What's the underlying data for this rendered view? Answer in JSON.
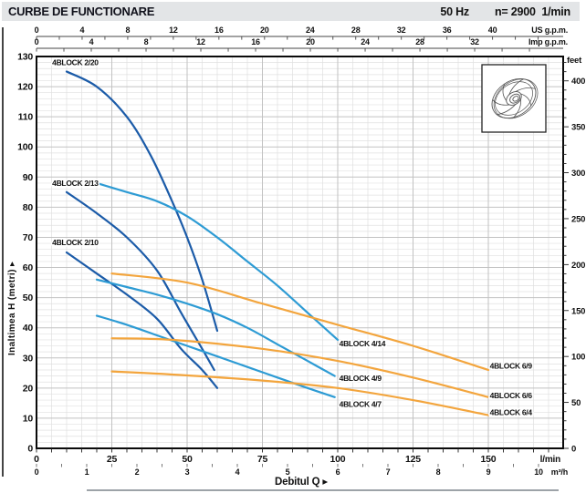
{
  "header": {
    "title": "CURBE DE FUNCTIONARE",
    "frequency": "50 Hz",
    "speed": "n= 2900  1/min"
  },
  "colors": {
    "dark_blue": "#1b5ba8",
    "light_blue": "#2d9bd4",
    "orange": "#f3a53d",
    "grid_minor": "#e0e0e0",
    "grid_major": "#c2c2c2",
    "frame": "#0a0a0a",
    "text": "#111111",
    "footer_rule": "#8f969c"
  },
  "chart_data": {
    "type": "line",
    "title": "CURBE DE FUNCTIONARE",
    "frequency": "50 Hz",
    "speed_rpm": "n= 2900 1/min",
    "xlabel": "Debitul Q",
    "ylabel": "Inaltimea H (metri)",
    "x_range_lmin": [
      0,
      175
    ],
    "y_range_m": [
      0,
      130
    ],
    "grid": true,
    "x_axes": [
      {
        "unit": "US g.p.m.",
        "position": "top-outer",
        "to_lmin": 3.785,
        "ticks": [
          0,
          4,
          8,
          12,
          16,
          20,
          24,
          28,
          32,
          36,
          40
        ],
        "minor_step": 2,
        "minor_max": 44
      },
      {
        "unit": "Imp g.p.m.",
        "position": "top-inner",
        "to_lmin": 4.546,
        "ticks": [
          0,
          4,
          8,
          12,
          16,
          20,
          24,
          28,
          32
        ],
        "minor_step": 2,
        "minor_max": 36
      },
      {
        "unit": "l/min",
        "position": "bottom-inner",
        "to_lmin": 1,
        "ticks": [
          0,
          25,
          50,
          75,
          100,
          125,
          150
        ],
        "minor_step": 5,
        "minor_max": 170
      },
      {
        "unit": "m³/h",
        "position": "bottom-outer",
        "to_lmin": 16.6667,
        "ticks": [
          0,
          1,
          2,
          3,
          4,
          5,
          6,
          7,
          8,
          9,
          10
        ],
        "minor_step": 0.5,
        "minor_max": 10
      }
    ],
    "y_axes": [
      {
        "unit": "metri",
        "position": "left",
        "to_m": 1,
        "ticks": [
          0,
          10,
          20,
          30,
          40,
          50,
          60,
          70,
          80,
          90,
          100,
          110,
          120,
          130
        ],
        "minor_step": 2,
        "minor_max": 130
      },
      {
        "unit": "feet",
        "position": "right",
        "to_m": 0.3048,
        "ticks": [
          0,
          50,
          100,
          150,
          200,
          250,
          300,
          350,
          400
        ],
        "minor_step": 10,
        "minor_max": 420
      }
    ],
    "series": [
      {
        "name": "4BLOCK 2/20",
        "color": "dark_blue",
        "label_at": [
          5.2,
          128
        ],
        "points": [
          [
            10,
            125
          ],
          [
            20,
            120
          ],
          [
            30,
            110
          ],
          [
            38,
            97
          ],
          [
            45,
            82
          ],
          [
            50,
            70
          ],
          [
            55,
            56
          ],
          [
            60,
            39
          ]
        ]
      },
      {
        "name": "4BLOCK 2/13",
        "color": "dark_blue",
        "label_at": [
          5.2,
          88
        ],
        "points": [
          [
            10,
            85
          ],
          [
            20,
            78
          ],
          [
            30,
            70
          ],
          [
            40,
            59
          ],
          [
            48,
            45
          ],
          [
            55,
            33
          ],
          [
            59,
            26
          ]
        ]
      },
      {
        "name": "4BLOCK 2/10",
        "color": "dark_blue",
        "label_at": [
          5.2,
          68.3
        ],
        "points": [
          [
            10,
            65
          ],
          [
            20,
            58
          ],
          [
            30,
            51
          ],
          [
            40,
            43
          ],
          [
            48,
            33
          ],
          [
            55,
            26
          ],
          [
            60,
            20
          ]
        ]
      },
      {
        "name": "4BLOCK 4/14",
        "color": "light_blue",
        "label_at": [
          100.5,
          34.8
        ],
        "points": [
          [
            20,
            88
          ],
          [
            30,
            85
          ],
          [
            40,
            82
          ],
          [
            50,
            77
          ],
          [
            60,
            70
          ],
          [
            70,
            62
          ],
          [
            80,
            54
          ],
          [
            90,
            45
          ],
          [
            100,
            36
          ]
        ]
      },
      {
        "name": "4BLOCK 4/9",
        "color": "light_blue",
        "label_at": [
          100.5,
          23.3
        ],
        "points": [
          [
            20,
            56
          ],
          [
            30,
            53.5
          ],
          [
            40,
            51
          ],
          [
            50,
            48
          ],
          [
            60,
            44.5
          ],
          [
            70,
            40
          ],
          [
            80,
            34.5
          ],
          [
            90,
            29
          ],
          [
            99,
            24
          ]
        ]
      },
      {
        "name": "4BLOCK 4/7",
        "color": "light_blue",
        "label_at": [
          100.5,
          14.6
        ],
        "points": [
          [
            20,
            44
          ],
          [
            30,
            41
          ],
          [
            40,
            37.5
          ],
          [
            50,
            34
          ],
          [
            60,
            30.5
          ],
          [
            70,
            27
          ],
          [
            80,
            23.5
          ],
          [
            90,
            20
          ],
          [
            99,
            17
          ]
        ]
      },
      {
        "name": "4BLOCK 6/9",
        "color": "orange",
        "label_at": [
          150.5,
          27.3
        ],
        "points": [
          [
            25,
            58
          ],
          [
            50,
            55
          ],
          [
            75,
            48
          ],
          [
            100,
            41
          ],
          [
            125,
            34
          ],
          [
            150,
            26
          ]
        ]
      },
      {
        "name": "4BLOCK 6/6",
        "color": "orange",
        "label_at": [
          150.5,
          17.6
        ],
        "points": [
          [
            25,
            36.5
          ],
          [
            45,
            36
          ],
          [
            75,
            33
          ],
          [
            100,
            29
          ],
          [
            125,
            23.5
          ],
          [
            150,
            17
          ]
        ]
      },
      {
        "name": "4BLOCK 6/4",
        "color": "orange",
        "label_at": [
          150.5,
          12.0
        ],
        "points": [
          [
            25,
            25.5
          ],
          [
            45,
            24.5
          ],
          [
            75,
            22.5
          ],
          [
            100,
            20
          ],
          [
            125,
            16
          ],
          [
            150,
            11
          ]
        ]
      }
    ]
  }
}
